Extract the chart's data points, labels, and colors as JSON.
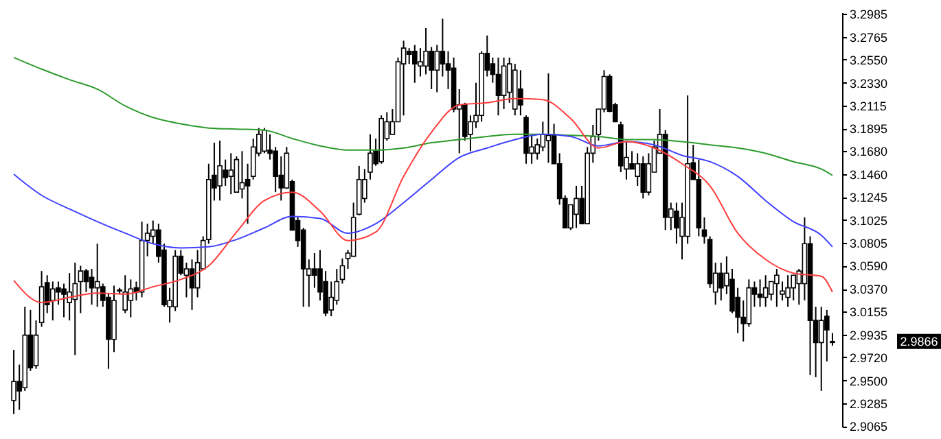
{
  "chart_data": {
    "type": "candlestick",
    "categories": [
      null,
      null,
      null,
      null,
      null,
      null,
      null,
      null,
      null,
      null,
      null,
      null,
      null,
      null,
      null,
      null,
      null,
      null,
      null,
      null,
      null,
      null,
      null,
      null,
      null,
      null,
      null,
      null,
      null,
      null,
      null,
      null,
      null,
      null,
      null,
      null,
      null,
      null,
      null,
      null,
      null,
      null,
      null,
      null,
      null,
      null,
      null,
      null,
      null,
      null,
      null,
      null,
      null,
      null,
      null,
      null,
      null,
      null,
      null,
      null,
      null,
      null,
      null,
      null,
      null,
      null,
      null,
      null,
      null,
      null,
      null,
      null,
      null,
      null,
      null,
      null,
      null,
      null,
      null,
      null,
      null,
      null,
      null,
      null,
      null,
      null,
      null,
      null,
      null,
      null,
      null,
      null,
      null,
      null,
      null,
      null,
      null,
      null,
      null,
      null,
      null,
      null,
      null,
      null,
      null,
      null,
      null,
      null,
      null,
      null,
      null,
      null,
      null,
      null,
      null,
      null,
      null,
      null,
      null,
      null,
      null,
      null,
      null,
      null,
      null,
      null,
      null,
      null,
      null,
      null,
      null,
      null,
      null,
      null,
      null,
      null,
      null,
      null,
      null,
      null,
      null,
      null,
      null,
      null,
      null,
      null,
      null,
      null
    ],
    "ohlc": [
      [
        2.931,
        2.979,
        2.918,
        2.949
      ],
      [
        2.949,
        2.965,
        2.922,
        2.94
      ],
      [
        2.943,
        3.02,
        2.94,
        2.993
      ],
      [
        2.993,
        3.017,
        2.959,
        2.962
      ],
      [
        2.964,
        3.007,
        2.961,
        2.993
      ],
      [
        3.005,
        3.054,
        3.001,
        3.039
      ],
      [
        3.043,
        3.05,
        3.014,
        3.022
      ],
      [
        3.026,
        3.044,
        3.007,
        3.037
      ],
      [
        3.038,
        3.044,
        3.022,
        3.034
      ],
      [
        3.037,
        3.042,
        3.01,
        3.032
      ],
      [
        3.024,
        3.052,
        3.007,
        3.034
      ],
      [
        3.027,
        3.062,
        2.974,
        3.042
      ],
      [
        3.044,
        3.059,
        3.014,
        3.054
      ],
      [
        3.054,
        3.056,
        3.034,
        3.044
      ],
      [
        3.048,
        3.056,
        3.022,
        3.038
      ],
      [
        3.038,
        3.08,
        3.02,
        3.044
      ],
      [
        3.039,
        3.042,
        3.02,
        3.026
      ],
      [
        3.029,
        3.032,
        2.961,
        2.989
      ],
      [
        2.989,
        3.04,
        2.977,
        3.026
      ],
      [
        3.035,
        3.038,
        3.032,
        3.036
      ],
      [
        3.017,
        3.05,
        3.014,
        3.034
      ],
      [
        3.026,
        3.046,
        3.01,
        3.037
      ],
      [
        3.038,
        3.044,
        3.026,
        3.034
      ],
      [
        3.034,
        3.101,
        3.029,
        3.083
      ],
      [
        3.083,
        3.099,
        3.068,
        3.09
      ],
      [
        3.087,
        3.102,
        3.08,
        3.093
      ],
      [
        3.093,
        3.099,
        3.062,
        3.068
      ],
      [
        3.074,
        3.08,
        3.02,
        3.022
      ],
      [
        3.02,
        3.038,
        3.005,
        3.026
      ],
      [
        3.02,
        3.074,
        3.016,
        3.068
      ],
      [
        3.068,
        3.074,
        3.05,
        3.052
      ],
      [
        3.05,
        3.062,
        3.029,
        3.056
      ],
      [
        3.056,
        3.065,
        3.017,
        3.038
      ],
      [
        3.038,
        3.074,
        3.029,
        3.062
      ],
      [
        3.056,
        3.087,
        3.056,
        3.083
      ],
      [
        3.084,
        3.156,
        3.08,
        3.141
      ],
      [
        3.145,
        3.176,
        3.121,
        3.133
      ],
      [
        3.135,
        3.178,
        3.121,
        3.154
      ],
      [
        3.15,
        3.16,
        3.135,
        3.143
      ],
      [
        3.144,
        3.166,
        3.127,
        3.15
      ],
      [
        3.129,
        3.163,
        3.129,
        3.16
      ],
      [
        3.132,
        3.168,
        3.123,
        3.138
      ],
      [
        3.141,
        3.156,
        3.099,
        3.135
      ],
      [
        3.144,
        3.18,
        3.141,
        3.172
      ],
      [
        3.166,
        3.19,
        3.163,
        3.184
      ],
      [
        3.168,
        3.19,
        3.166,
        3.188
      ],
      [
        3.169,
        3.184,
        3.16,
        3.166
      ],
      [
        3.168,
        3.172,
        3.129,
        3.144
      ],
      [
        3.145,
        3.163,
        3.121,
        3.133
      ],
      [
        3.133,
        3.172,
        3.132,
        3.166
      ],
      [
        3.139,
        3.141,
        3.093,
        3.093
      ],
      [
        3.102,
        3.105,
        3.077,
        3.083
      ],
      [
        3.093,
        3.095,
        3.02,
        3.056
      ],
      [
        3.05,
        3.065,
        3.02,
        3.056
      ],
      [
        3.056,
        3.071,
        3.038,
        3.05
      ],
      [
        3.056,
        3.074,
        3.026,
        3.034
      ],
      [
        3.044,
        3.054,
        3.011,
        3.014
      ],
      [
        3.017,
        3.044,
        3.011,
        3.029
      ],
      [
        3.026,
        3.056,
        3.022,
        3.044
      ],
      [
        3.046,
        3.066,
        3.042,
        3.059
      ],
      [
        3.066,
        3.074,
        3.056,
        3.071
      ],
      [
        3.068,
        3.119,
        3.068,
        3.105
      ],
      [
        3.108,
        3.154,
        3.107,
        3.141
      ],
      [
        3.123,
        3.151,
        3.119,
        3.141
      ],
      [
        3.148,
        3.184,
        3.141,
        3.166
      ],
      [
        3.168,
        3.18,
        3.154,
        3.156
      ],
      [
        3.158,
        3.202,
        3.156,
        3.199
      ],
      [
        3.18,
        3.205,
        3.178,
        3.196
      ],
      [
        3.184,
        3.208,
        3.184,
        3.196
      ],
      [
        3.196,
        3.257,
        3.196,
        3.253
      ],
      [
        3.251,
        3.273,
        3.202,
        3.266
      ],
      [
        3.263,
        3.266,
        3.251,
        3.26
      ],
      [
        3.263,
        3.269,
        3.233,
        3.251
      ],
      [
        3.249,
        3.266,
        3.239,
        3.253
      ],
      [
        3.249,
        3.285,
        3.241,
        3.263
      ],
      [
        3.263,
        3.267,
        3.227,
        3.245
      ],
      [
        3.245,
        3.269,
        3.224,
        3.263
      ],
      [
        3.263,
        3.294,
        3.239,
        3.251
      ],
      [
        3.251,
        3.263,
        3.227,
        3.245
      ],
      [
        3.247,
        3.257,
        3.205,
        3.208
      ],
      [
        3.208,
        3.227,
        3.166,
        3.212
      ],
      [
        3.212,
        3.214,
        3.178,
        3.182
      ],
      [
        3.184,
        3.202,
        3.168,
        3.196
      ],
      [
        3.196,
        3.233,
        3.19,
        3.202
      ],
      [
        3.202,
        3.263,
        3.196,
        3.261
      ],
      [
        3.261,
        3.278,
        3.239,
        3.245
      ],
      [
        3.251,
        3.257,
        3.233,
        3.241
      ],
      [
        3.241,
        3.257,
        3.202,
        3.221
      ],
      [
        3.221,
        3.257,
        3.208,
        3.249
      ],
      [
        3.224,
        3.257,
        3.214,
        3.251
      ],
      [
        3.208,
        3.251,
        3.202,
        3.245
      ],
      [
        3.227,
        3.245,
        3.202,
        3.212
      ],
      [
        3.2,
        3.202,
        3.156,
        3.166
      ],
      [
        3.166,
        3.184,
        3.156,
        3.172
      ],
      [
        3.166,
        3.18,
        3.16,
        3.174
      ],
      [
        3.172,
        3.196,
        3.168,
        3.184
      ],
      [
        3.178,
        3.242,
        3.157,
        3.183
      ],
      [
        3.184,
        3.194,
        3.156,
        3.156
      ],
      [
        3.156,
        3.166,
        3.117,
        3.123
      ],
      [
        3.123,
        3.126,
        3.095,
        3.095
      ],
      [
        3.095,
        3.117,
        3.093,
        3.117
      ],
      [
        3.108,
        3.135,
        3.095,
        3.123
      ],
      [
        3.123,
        3.135,
        3.099,
        3.099
      ],
      [
        3.099,
        3.172,
        3.099,
        3.166
      ],
      [
        3.166,
        3.193,
        3.157,
        3.182
      ],
      [
        3.184,
        3.208,
        3.178,
        3.208
      ],
      [
        3.208,
        3.245,
        3.205,
        3.239
      ],
      [
        3.239,
        3.241,
        3.205,
        3.206
      ],
      [
        3.212,
        3.214,
        3.196,
        3.196
      ],
      [
        3.193,
        3.196,
        3.148,
        3.154
      ],
      [
        3.151,
        3.178,
        3.141,
        3.162
      ],
      [
        3.156,
        3.168,
        3.151,
        3.151
      ],
      [
        3.144,
        3.166,
        3.135,
        3.156
      ],
      [
        3.156,
        3.163,
        3.123,
        3.129
      ],
      [
        3.129,
        3.166,
        3.126,
        3.156
      ],
      [
        3.148,
        3.178,
        3.148,
        3.172
      ],
      [
        3.166,
        3.208,
        3.166,
        3.184
      ],
      [
        3.184,
        3.188,
        3.093,
        3.105
      ],
      [
        3.105,
        3.119,
        3.093,
        3.113
      ],
      [
        3.111,
        3.119,
        3.08,
        3.095
      ],
      [
        3.087,
        3.119,
        3.065,
        3.105
      ],
      [
        3.087,
        3.221,
        3.08,
        3.156
      ],
      [
        3.157,
        3.174,
        3.141,
        3.141
      ],
      [
        3.141,
        3.16,
        3.087,
        3.095
      ],
      [
        3.093,
        3.105,
        3.08,
        3.087
      ],
      [
        3.084,
        3.087,
        3.038,
        3.042
      ],
      [
        3.034,
        3.062,
        3.022,
        3.052
      ],
      [
        3.052,
        3.062,
        3.026,
        3.038
      ],
      [
        3.04,
        3.068,
        3.032,
        3.052
      ],
      [
        3.046,
        3.056,
        3.014,
        3.016
      ],
      [
        3.029,
        3.038,
        2.995,
        3.01
      ],
      [
        3.01,
        3.026,
        2.987,
        3.004
      ],
      [
        3.004,
        3.046,
        3.001,
        3.038
      ],
      [
        3.038,
        3.044,
        3.02,
        3.032
      ],
      [
        3.032,
        3.046,
        3.02,
        3.029
      ],
      [
        3.029,
        3.05,
        3.02,
        3.038
      ],
      [
        3.032,
        3.044,
        3.026,
        3.044
      ],
      [
        3.042,
        3.056,
        3.02,
        3.05
      ],
      [
        3.032,
        3.044,
        3.026,
        3.035
      ],
      [
        3.029,
        3.05,
        3.02,
        3.038
      ],
      [
        3.038,
        3.05,
        3.026,
        3.05
      ],
      [
        3.042,
        3.056,
        3.022,
        3.054
      ],
      [
        3.042,
        3.105,
        3.026,
        3.08
      ],
      [
        3.08,
        3.087,
        2.955,
        3.007
      ],
      [
        3.007,
        3.02,
        2.953,
        2.986
      ],
      [
        2.986,
        3.02,
        2.94,
        3.007
      ],
      [
        3.011,
        3.017,
        2.968,
        2.998
      ],
      [
        2.986,
        2.995,
        2.983,
        2.987
      ]
    ],
    "series": [
      {
        "type": "line",
        "color": "#2e9b2e",
        "values": [
          3.257,
          null,
          null,
          null,
          null,
          3.246,
          null,
          null,
          null,
          null,
          3.236,
          null,
          null,
          null,
          null,
          3.227,
          null,
          null,
          null,
          null,
          3.211,
          null,
          null,
          null,
          null,
          3.2,
          null,
          null,
          null,
          null,
          3.194,
          null,
          null,
          null,
          null,
          3.19,
          null,
          null,
          null,
          null,
          3.189,
          null,
          null,
          null,
          null,
          3.188,
          null,
          null,
          null,
          null,
          3.18,
          null,
          null,
          null,
          null,
          3.173,
          null,
          null,
          null,
          null,
          3.169,
          null,
          null,
          null,
          null,
          3.169,
          null,
          null,
          null,
          null,
          3.171,
          null,
          null,
          null,
          null,
          3.176,
          null,
          null,
          null,
          null,
          3.179,
          null,
          null,
          null,
          null,
          3.182,
          null,
          null,
          null,
          null,
          3.184,
          null,
          null,
          null,
          null,
          3.184,
          null,
          null,
          null,
          null,
          3.183,
          null,
          null,
          null,
          null,
          3.182,
          null,
          null,
          null,
          null,
          3.179,
          null,
          null,
          null,
          null,
          3.179,
          null,
          null,
          null,
          null,
          3.177,
          null,
          null,
          null,
          null,
          3.174,
          null,
          null,
          null,
          null,
          3.171,
          null,
          null,
          null,
          null,
          3.166,
          null,
          null,
          null,
          null,
          3.158,
          null,
          null,
          null,
          null,
          3.151,
          null,
          3.145
        ]
      },
      {
        "type": "line",
        "color": "#4040ff",
        "values": [
          3.146,
          null,
          null,
          null,
          null,
          3.126,
          null,
          null,
          null,
          null,
          3.113,
          null,
          null,
          null,
          null,
          3.101,
          null,
          null,
          null,
          null,
          3.09,
          null,
          null,
          null,
          null,
          3.08,
          null,
          null,
          null,
          null,
          3.076,
          null,
          null,
          null,
          null,
          3.077,
          null,
          null,
          null,
          null,
          3.084,
          null,
          null,
          null,
          null,
          3.095,
          null,
          null,
          null,
          null,
          3.106,
          null,
          null,
          null,
          null,
          3.104,
          null,
          null,
          null,
          null,
          3.09,
          null,
          null,
          null,
          null,
          3.099,
          null,
          null,
          null,
          null,
          3.119,
          null,
          null,
          null,
          null,
          3.141,
          null,
          null,
          null,
          null,
          3.162,
          null,
          null,
          null,
          null,
          3.171,
          null,
          null,
          null,
          null,
          3.179,
          null,
          null,
          null,
          null,
          3.184,
          null,
          null,
          null,
          null,
          3.182,
          null,
          null,
          null,
          null,
          3.173,
          null,
          null,
          null,
          null,
          3.177,
          null,
          null,
          null,
          null,
          3.174,
          null,
          null,
          null,
          null,
          3.164,
          null,
          null,
          null,
          null,
          3.158,
          null,
          null,
          null,
          null,
          3.144,
          null,
          null,
          null,
          null,
          3.121,
          null,
          null,
          null,
          null,
          3.101,
          null,
          null,
          null,
          null,
          3.088,
          null,
          3.077
        ]
      },
      {
        "type": "line",
        "color": "#ff3c3c",
        "values": [
          3.045,
          null,
          null,
          null,
          null,
          3.024,
          null,
          null,
          null,
          null,
          3.029,
          null,
          null,
          null,
          null,
          3.033,
          null,
          null,
          null,
          null,
          3.032,
          null,
          null,
          null,
          null,
          3.039,
          null,
          null,
          null,
          null,
          3.046,
          null,
          null,
          null,
          null,
          3.059,
          null,
          null,
          null,
          null,
          3.091,
          null,
          null,
          null,
          null,
          3.121,
          null,
          null,
          null,
          null,
          3.129,
          null,
          null,
          null,
          null,
          3.111,
          null,
          null,
          null,
          null,
          3.083,
          null,
          null,
          null,
          null,
          3.091,
          null,
          null,
          null,
          null,
          3.144,
          null,
          null,
          null,
          null,
          3.186,
          null,
          null,
          null,
          null,
          3.212,
          null,
          null,
          null,
          null,
          3.214,
          null,
          null,
          null,
          null,
          3.218,
          null,
          null,
          null,
          null,
          3.217,
          null,
          null,
          null,
          null,
          3.199,
          null,
          null,
          null,
          null,
          3.171,
          null,
          null,
          null,
          null,
          3.177,
          null,
          null,
          null,
          null,
          3.171,
          null,
          null,
          null,
          null,
          3.156,
          null,
          null,
          null,
          null,
          3.135,
          null,
          null,
          null,
          null,
          3.09,
          null,
          null,
          null,
          null,
          3.065,
          null,
          null,
          null,
          null,
          3.052,
          null,
          null,
          null,
          null,
          3.049,
          null,
          3.034
        ]
      }
    ],
    "ylim": [
      2.906,
      3.3
    ],
    "yticks": [
      3.2985,
      3.2765,
      {
        "value": 3.255,
        "label": "3.2550"
      },
      {
        "value": 3.233,
        "label": "3.2330"
      },
      3.2115,
      3.1895,
      {
        "value": 3.168,
        "label": "3.1680"
      },
      {
        "value": 3.146,
        "label": "3.1460"
      },
      3.1245,
      3.1025,
      3.0805,
      {
        "value": 3.059,
        "label": "3.0590"
      },
      {
        "value": 3.037,
        "label": "3.0370"
      },
      3.0155,
      2.9935,
      {
        "value": 2.972,
        "label": "2.9720"
      },
      {
        "value": 2.95,
        "label": "2.9500"
      },
      2.9285,
      2.9065
    ],
    "tick_labels": "y",
    "annotations": [
      "2.9866"
    ]
  }
}
